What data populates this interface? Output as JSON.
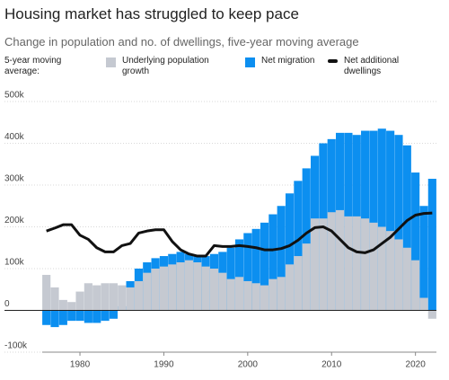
{
  "chart_data": {
    "type": "bar",
    "title": "Housing market has struggled to keep pace",
    "subtitle": "Change in population and no. of dwellings, five-year moving average",
    "legend_title": "5-year moving average:",
    "x": [
      1976,
      1977,
      1978,
      1979,
      1980,
      1981,
      1982,
      1983,
      1984,
      1985,
      1986,
      1987,
      1988,
      1989,
      1990,
      1991,
      1992,
      1993,
      1994,
      1995,
      1996,
      1997,
      1998,
      1999,
      2000,
      2001,
      2002,
      2003,
      2004,
      2005,
      2006,
      2007,
      2008,
      2009,
      2010,
      2011,
      2012,
      2013,
      2014,
      2015,
      2016,
      2017,
      2018,
      2019,
      2020,
      2021,
      2022
    ],
    "series": [
      {
        "name": "Underlying population growth",
        "type": "bar",
        "color": "#c5c9d1",
        "values": [
          85000,
          55000,
          25000,
          20000,
          45000,
          65000,
          60000,
          65000,
          65000,
          60000,
          55000,
          70000,
          90000,
          100000,
          105000,
          110000,
          115000,
          120000,
          115000,
          105000,
          100000,
          90000,
          75000,
          80000,
          70000,
          65000,
          60000,
          75000,
          80000,
          110000,
          130000,
          160000,
          220000,
          220000,
          235000,
          240000,
          225000,
          225000,
          220000,
          210000,
          200000,
          190000,
          170000,
          150000,
          120000,
          30000,
          -20000
        ]
      },
      {
        "name": "Net migration",
        "type": "bar",
        "color": "#0c8ff0",
        "values": [
          -35000,
          -40000,
          -35000,
          -25000,
          -25000,
          -30000,
          -30000,
          -25000,
          -20000,
          10000,
          70000,
          100000,
          115000,
          125000,
          130000,
          135000,
          140000,
          135000,
          130000,
          130000,
          135000,
          140000,
          150000,
          170000,
          185000,
          195000,
          210000,
          230000,
          250000,
          280000,
          310000,
          340000,
          370000,
          400000,
          410000,
          425000,
          425000,
          420000,
          430000,
          430000,
          435000,
          430000,
          420000,
          395000,
          330000,
          250000,
          315000
        ]
      },
      {
        "name": "Net additional dwellings",
        "type": "line",
        "color": "#111111",
        "values": [
          190000,
          197000,
          205000,
          205000,
          180000,
          170000,
          150000,
          140000,
          140000,
          155000,
          160000,
          185000,
          190000,
          193000,
          193000,
          165000,
          145000,
          135000,
          130000,
          130000,
          155000,
          153000,
          153000,
          155000,
          153000,
          150000,
          145000,
          145000,
          148000,
          155000,
          168000,
          185000,
          198000,
          200000,
          190000,
          170000,
          150000,
          140000,
          138000,
          145000,
          160000,
          175000,
          195000,
          215000,
          228000,
          232000,
          233000
        ]
      }
    ],
    "xlim": [
      1975.5,
      2022.5
    ],
    "xticks": [
      1980,
      1990,
      2000,
      2010,
      2020
    ],
    "ylim": [
      -100000,
      500000
    ],
    "yticks": [
      {
        "value": -100000,
        "label": "-100k"
      },
      0,
      {
        "value": 100000,
        "label": "100k"
      },
      {
        "value": 200000,
        "label": "200k"
      },
      {
        "value": 300000,
        "label": "300k"
      },
      {
        "value": 400000,
        "label": "400k"
      },
      {
        "value": 500000,
        "label": "500k"
      }
    ],
    "grid": true
  }
}
